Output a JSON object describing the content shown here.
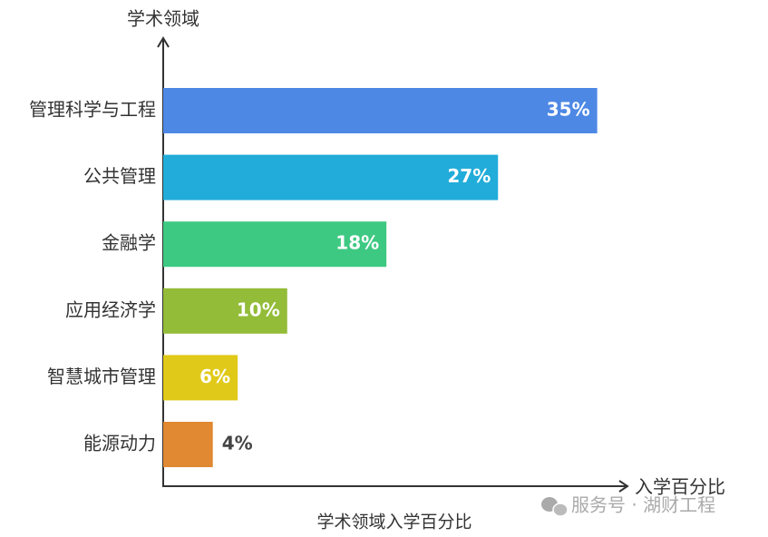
{
  "chart_data": {
    "type": "bar",
    "orientation": "horizontal",
    "title": "学术领域入学百分比",
    "ylabel": "学术领域",
    "xlabel": "入学百分比",
    "categories": [
      "管理科学与工程",
      "公共管理",
      "金融学",
      "应用经济学",
      "智慧城市管理",
      "能源动力"
    ],
    "values": [
      35,
      27,
      18,
      10,
      6,
      4
    ],
    "value_labels": [
      "35%",
      "27%",
      "18%",
      "10%",
      "6%",
      "4%"
    ],
    "colors": [
      "#4e88e5",
      "#21acd9",
      "#3ec983",
      "#93bc38",
      "#e0c918",
      "#e08832"
    ],
    "xlim": [
      0,
      37
    ]
  },
  "watermark": "服务号 · 湖财工程"
}
